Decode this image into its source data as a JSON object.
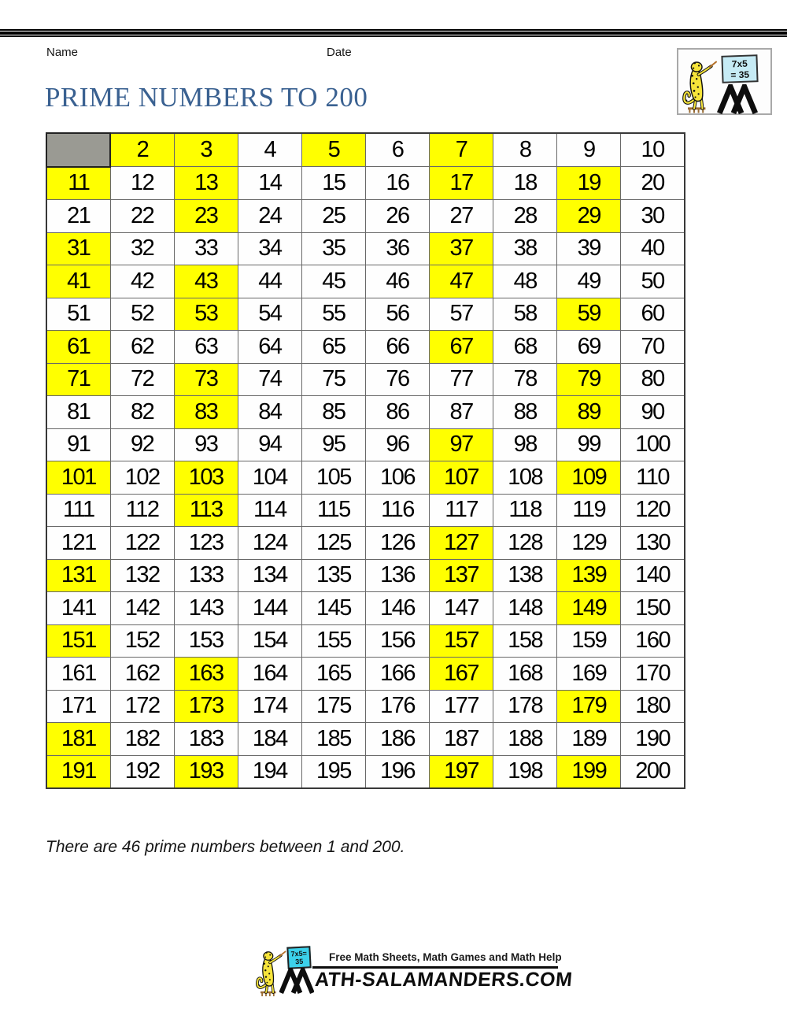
{
  "header": {
    "name_label": "Name",
    "date_label": "Date"
  },
  "title": "PRIME NUMBERS TO 200",
  "grid": {
    "rows": 20,
    "cols": 10,
    "first": 1,
    "last": 200,
    "blank_cells": [
      1
    ],
    "primes": [
      2,
      3,
      5,
      7,
      11,
      13,
      17,
      19,
      23,
      29,
      31,
      37,
      41,
      43,
      47,
      53,
      59,
      61,
      67,
      71,
      73,
      79,
      83,
      89,
      97,
      101,
      103,
      107,
      109,
      113,
      127,
      131,
      137,
      139,
      149,
      151,
      157,
      163,
      167,
      173,
      179,
      181,
      191,
      193,
      197,
      199
    ],
    "prime_count": 46,
    "highlight_color": "#ffff00",
    "blank_color": "#9a9a93"
  },
  "summary_note": "There are 46 prime numbers between 1 and 200.",
  "top_logo": {
    "board_line1": "7x5",
    "board_line2": "= 35"
  },
  "footer_logo": {
    "board_line1": "7x5=",
    "board_line2": "35",
    "tagline": "Free Math Sheets, Math Games and Math Help",
    "site_text": "ATH-SALAMANDERS.COM"
  },
  "colors": {
    "title_blue": "#3a6191",
    "board_cyan_light": "#c6ebf5",
    "board_cyan_bright": "#3cd1ea"
  }
}
